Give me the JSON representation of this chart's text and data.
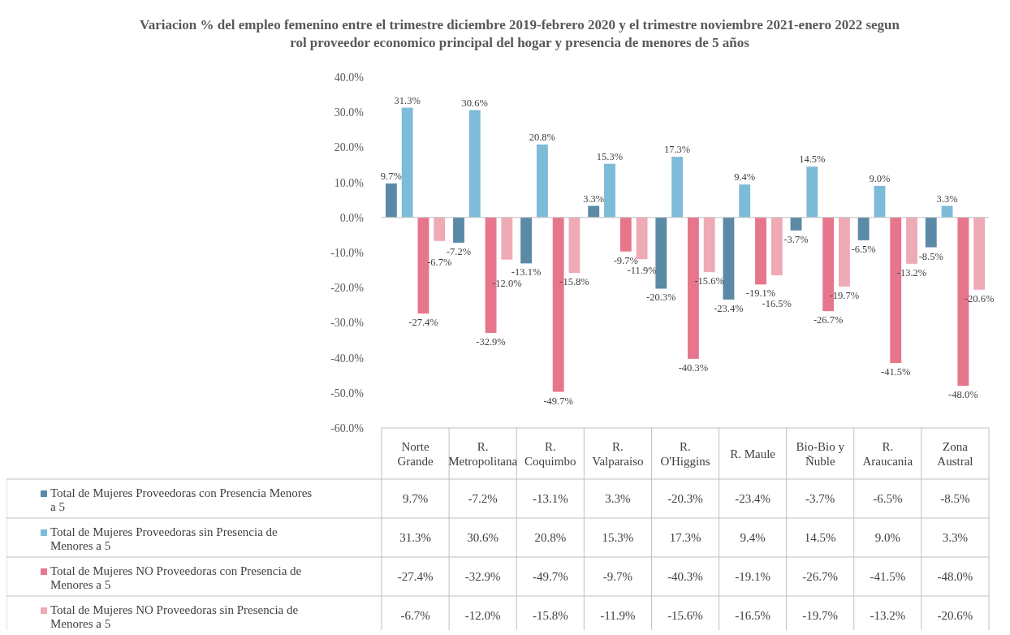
{
  "chart_data": {
    "type": "bar",
    "title": "Variacion % del empleo femenino entre el trimestre diciembre 2019-febrero 2020 y el trimestre noviembre 2021-enero 2022 segun rol proveedor economico principal del hogar y presencia de menores de 5 años",
    "categories": [
      "Norte Grande",
      "R. Metropolitana",
      "R. Coquimbo",
      "R. Valparaiso",
      "R. O'Higgins",
      "R. Maule",
      "Bio-Bio y Ñuble",
      "R. Araucania",
      "Zona Austral"
    ],
    "series": [
      {
        "name": "Total de Mujeres Proveedoras con Presencia Menores a 5",
        "color": "#5a8aa6",
        "values": [
          9.7,
          -7.2,
          -13.1,
          3.3,
          -20.3,
          -23.4,
          -3.7,
          -6.5,
          -8.5
        ],
        "value_labels": [
          "9.7%",
          "-7.2%",
          "-13.1%",
          "3.3%",
          "-20.3%",
          "-23.4%",
          "-3.7%",
          "-6.5%",
          "-8.5%"
        ]
      },
      {
        "name": "Total de Mujeres Proveedoras sin Presencia de Menores a 5",
        "color": "#7dbbd8",
        "values": [
          31.3,
          30.6,
          20.8,
          15.3,
          17.3,
          9.4,
          14.5,
          9.0,
          3.3
        ],
        "value_labels": [
          "31.3%",
          "30.6%",
          "20.8%",
          "15.3%",
          "17.3%",
          "9.4%",
          "14.5%",
          "9.0%",
          "3.3%"
        ]
      },
      {
        "name": "Total de Mujeres NO Proveedoras con Presencia de Menores a 5",
        "color": "#e7768c",
        "values": [
          -27.4,
          -32.9,
          -49.7,
          -9.7,
          -40.3,
          -19.1,
          -26.7,
          -41.5,
          -48.0
        ],
        "value_labels": [
          "-27.4%",
          "-32.9%",
          "-49.7%",
          "-9.7%",
          "-40.3%",
          "-19.1%",
          "-26.7%",
          "-41.5%",
          "-48.0%"
        ]
      },
      {
        "name": "Total de Mujeres NO Proveedoras sin Presencia de Menores a 5",
        "color": "#eeaab5",
        "values": [
          -6.7,
          -12.0,
          -15.8,
          -11.9,
          -15.6,
          -16.5,
          -19.7,
          -13.2,
          -20.6
        ],
        "value_labels": [
          "-6.7%",
          "-12.0%",
          "-15.8%",
          "-11.9%",
          "-15.6%",
          "-16.5%",
          "-19.7%",
          "-13.2%",
          "-20.6%"
        ]
      }
    ],
    "ylim": [
      -60,
      40
    ],
    "yticks": [
      {
        "value": 40,
        "label": "40.0%"
      },
      {
        "value": 30,
        "label": "30.0%"
      },
      {
        "value": 20,
        "label": "20.0%"
      },
      {
        "value": 10,
        "label": "10.0%"
      },
      {
        "value": 0,
        "label": "0.0%"
      },
      {
        "value": -10,
        "label": "-10.0%"
      },
      {
        "value": -20,
        "label": "-20.0%"
      },
      {
        "value": -30,
        "label": "-30.0%"
      },
      {
        "value": -40,
        "label": "-40.0%"
      },
      {
        "value": -50,
        "label": "-50.0%"
      },
      {
        "value": -60,
        "label": "-60.0%"
      }
    ],
    "legend": "bottom"
  }
}
